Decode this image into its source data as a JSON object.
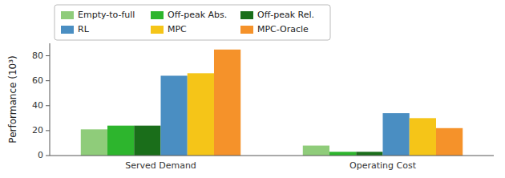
{
  "chart_data": {
    "type": "bar",
    "categories": [
      "Served Demand",
      "Operating Cost"
    ],
    "series": [
      {
        "name": "Empty-to-full",
        "color": "#8fcc7a",
        "values": [
          21,
          8
        ]
      },
      {
        "name": "Off-peak Abs.",
        "color": "#2db52d",
        "values": [
          24,
          3
        ]
      },
      {
        "name": "Off-peak Rel.",
        "color": "#1a6e1a",
        "values": [
          24,
          3
        ]
      },
      {
        "name": "RL",
        "color": "#4a8ec2",
        "values": [
          64,
          34
        ]
      },
      {
        "name": "MPC",
        "color": "#f5c518",
        "values": [
          66,
          30
        ]
      },
      {
        "name": "MPC-Oracle",
        "color": "#f5922a",
        "values": [
          85,
          22
        ]
      }
    ],
    "ylabel": "Performance (10³)",
    "ylim": [
      0,
      90
    ],
    "yticks": [
      0,
      20,
      40,
      60,
      80
    ],
    "legend": "top"
  }
}
